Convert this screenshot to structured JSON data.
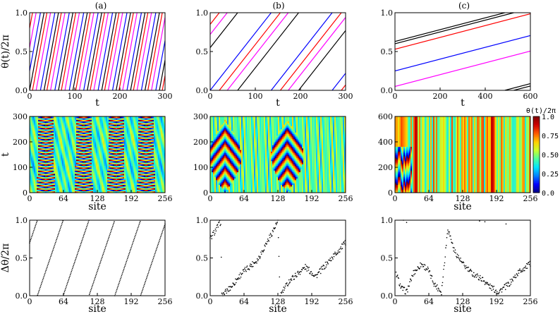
{
  "panel_labels": [
    "(a)",
    "(b)",
    "(c)"
  ],
  "colorbar": {
    "title": "θ(t)/2π",
    "ticks": [
      "1.0",
      "0.75",
      "0.50",
      "0.25",
      "0.0"
    ],
    "colors": [
      "#00007f",
      "#0000ff",
      "#0080ff",
      "#00e5ff",
      "#4cff9f",
      "#c8ff2e",
      "#ffd000",
      "#ff5a00",
      "#d00000",
      "#7f0000"
    ]
  },
  "chart_data": [
    {
      "id": "a-top",
      "type": "line",
      "xlabel": "t",
      "ylabel": "θ(t)/2π",
      "xlim": [
        0,
        300
      ],
      "ylim": [
        0,
        1
      ],
      "xticks": [
        "0",
        "100",
        "200",
        "300"
      ],
      "yticks": [
        "0.0",
        "0.5",
        "1.0"
      ],
      "phase_velocity": 0.0313,
      "series": [
        {
          "name": "oscillator-1",
          "color": "#000000",
          "offset": 0.0
        },
        {
          "name": "oscillator-2",
          "color": "#0000ff",
          "offset": 0.25
        },
        {
          "name": "oscillator-3",
          "color": "#ff00ff",
          "offset": 0.55
        },
        {
          "name": "oscillator-4",
          "color": "#ff0000",
          "offset": 0.8
        }
      ]
    },
    {
      "id": "b-top",
      "type": "line",
      "xlabel": "t",
      "ylabel": "",
      "xlim": [
        0,
        300
      ],
      "ylim": [
        0,
        1
      ],
      "xticks": [
        "0",
        "100",
        "200",
        "300"
      ],
      "yticks": [
        "0.0",
        "0.5",
        "1.0"
      ],
      "phase_velocity": 0.0074,
      "series": [
        {
          "name": "oscillator-1",
          "color": "#000000",
          "offset": 0.55
        },
        {
          "name": "oscillator-2",
          "color": "#ff00ff",
          "offset": 0.72
        },
        {
          "name": "oscillator-3",
          "color": "#0000ff",
          "offset": 0.0
        },
        {
          "name": "oscillator-4",
          "color": "#ff0000",
          "offset": 0.85
        }
      ]
    },
    {
      "id": "c-top",
      "type": "line",
      "xlabel": "t",
      "ylabel": "",
      "xlim": [
        0,
        600
      ],
      "ylim": [
        0,
        1
      ],
      "xticks": [
        "0",
        "200",
        "400",
        "600"
      ],
      "yticks": [
        "0.0",
        "0.5",
        "1.0"
      ],
      "phase_velocity": 0.00076,
      "series": [
        {
          "name": "oscillator-1",
          "color": "#000000",
          "offset": 0.63
        },
        {
          "name": "oscillator-2",
          "color": "#ff0000",
          "offset": 0.53
        },
        {
          "name": "oscillator-3",
          "color": "#0000ff",
          "offset": 0.25
        },
        {
          "name": "oscillator-4",
          "color": "#ff00ff",
          "offset": 0.05
        },
        {
          "name": "oscillator-5",
          "color": "#000000",
          "offset": -0.4
        }
      ]
    },
    {
      "id": "a-mid",
      "type": "heatmap",
      "xlabel": "site",
      "ylabel": "t",
      "xlim": [
        0,
        256
      ],
      "ylim": [
        0,
        300
      ],
      "xticks": [
        "0",
        "64",
        "128",
        "192",
        "256"
      ],
      "yticks": [
        "0",
        "100",
        "200",
        "300"
      ],
      "pattern": "four-arch-period-27"
    },
    {
      "id": "b-mid",
      "type": "heatmap",
      "xlabel": "",
      "ylabel": "",
      "xlim": [
        0,
        256
      ],
      "ylim": [
        0,
        300
      ],
      "xticks": [
        "0",
        "64",
        "128",
        "192",
        "256"
      ],
      "yticks": [
        "0",
        "100",
        "200",
        "300"
      ],
      "pattern": "two-arch-striped"
    },
    {
      "id": "c-mid",
      "type": "heatmap",
      "xlabel": "site",
      "ylabel": "",
      "xlim": [
        0,
        256
      ],
      "ylim": [
        0,
        600
      ],
      "xticks": [
        "0",
        "64",
        "128",
        "192",
        "256"
      ],
      "yticks": [
        "0",
        "200",
        "400",
        "600"
      ],
      "pattern": "vertical-streaks"
    },
    {
      "id": "a-bot",
      "type": "scatter",
      "xlabel": "site",
      "ylabel": "Δθ/2π",
      "xlim": [
        0,
        256
      ],
      "ylim": [
        0,
        1
      ],
      "xticks": [
        "0",
        "64",
        "128",
        "192",
        "256"
      ],
      "yticks": [
        "0.0",
        "0.5",
        "1.0"
      ],
      "slope_per_site": 0.0205,
      "intercept": 0.7
    },
    {
      "id": "b-bot",
      "type": "scatter",
      "xlabel": "site",
      "ylabel": "",
      "xlim": [
        0,
        256
      ],
      "ylim": [
        0,
        1
      ],
      "xticks": [
        "0",
        "64",
        "128",
        "192",
        "256"
      ],
      "yticks": [
        "0.0",
        "0.5",
        "1.0"
      ],
      "anchors": [
        [
          0,
          0.75
        ],
        [
          20,
          0.98
        ],
        [
          22,
          0.0
        ],
        [
          40,
          0.12
        ],
        [
          60,
          0.3
        ],
        [
          90,
          0.48
        ],
        [
          128,
          0.98
        ],
        [
          132,
          0.0
        ],
        [
          150,
          0.2
        ],
        [
          180,
          0.38
        ],
        [
          200,
          0.26
        ],
        [
          230,
          0.5
        ],
        [
          256,
          0.7
        ]
      ]
    },
    {
      "id": "c-bot",
      "type": "scatter",
      "xlabel": "site",
      "ylabel": "",
      "xlim": [
        0,
        256
      ],
      "ylim": [
        0,
        1
      ],
      "xticks": [
        "0",
        "64",
        "128",
        "192",
        "256"
      ],
      "yticks": [
        "0.0",
        "0.5",
        "1.0"
      ],
      "anchors": [
        [
          2,
          0.3
        ],
        [
          12,
          0.1
        ],
        [
          22,
          0.05
        ],
        [
          35,
          0.3
        ],
        [
          50,
          0.42
        ],
        [
          62,
          0.35
        ],
        [
          75,
          0.15
        ],
        [
          88,
          0.05
        ],
        [
          100,
          0.9
        ],
        [
          112,
          0.6
        ],
        [
          128,
          0.42
        ],
        [
          145,
          0.3
        ],
        [
          165,
          0.22
        ],
        [
          180,
          0.12
        ],
        [
          195,
          0.05
        ],
        [
          215,
          0.15
        ],
        [
          235,
          0.32
        ],
        [
          256,
          0.42
        ]
      ],
      "top_points": [
        [
          16,
          1.0
        ],
        [
          22,
          0.97
        ],
        [
          160,
          0.99
        ],
        [
          170,
          0.98
        ],
        [
          210,
          0.95
        ]
      ]
    }
  ]
}
